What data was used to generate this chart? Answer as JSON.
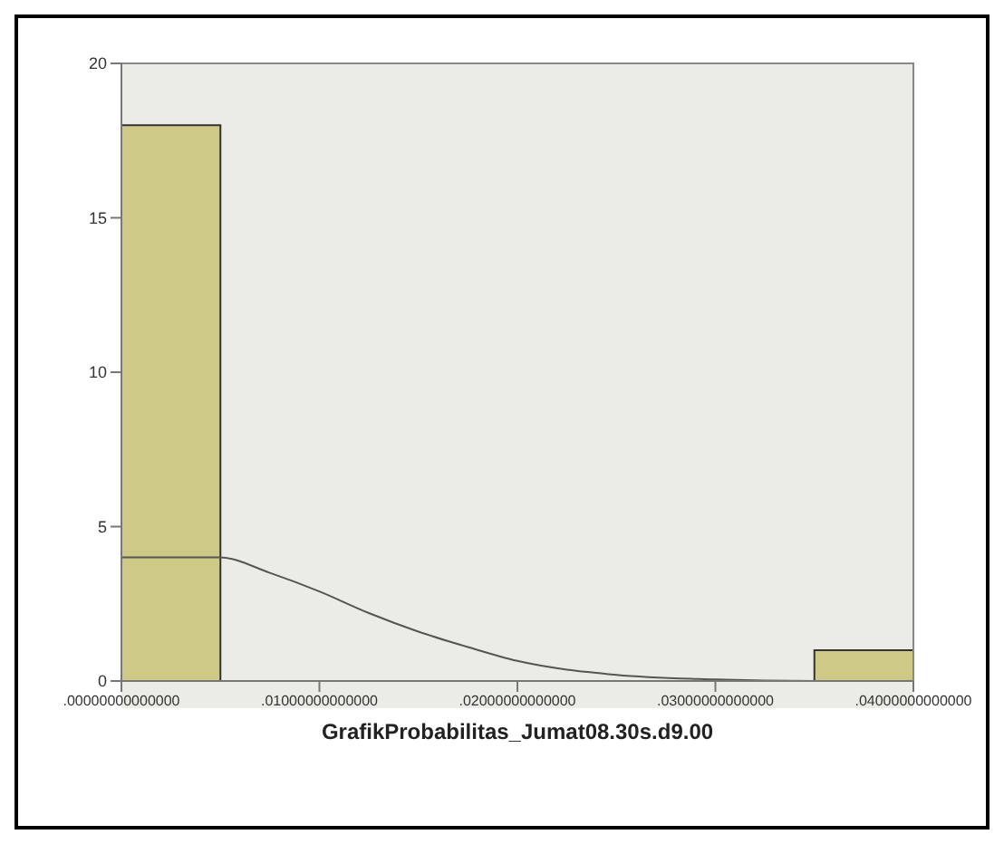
{
  "chart_data": {
    "type": "histogram",
    "xlabel": "GrafikProbabilitas_Jumat08.30s.d9.00",
    "bins": [
      0,
      0.005,
      0.01,
      0.015,
      0.02,
      0.025,
      0.03,
      0.035,
      0.04
    ],
    "values": [
      18,
      0,
      0,
      0,
      0,
      0,
      0,
      1
    ],
    "color": "#cfc987",
    "series": [
      {
        "type": "line",
        "color": "#555555",
        "x": [
          0,
          0.005,
          0.0075,
          0.01,
          0.0125,
          0.015,
          0.0175,
          0.02,
          0.025,
          0.03,
          0.035,
          0.04
        ],
        "values": [
          4.0,
          4.0,
          3.5,
          2.9,
          2.2,
          1.6,
          1.1,
          0.65,
          0.2,
          0.05,
          0,
          0
        ]
      }
    ],
    "xlim": [
      0,
      0.04
    ],
    "xticks": [
      {
        "value": 0,
        "label": ".00000000000000"
      },
      {
        "value": 0.01,
        "label": ".01000000000000"
      },
      {
        "value": 0.02,
        "label": ".02000000000000"
      },
      {
        "value": 0.03,
        "label": ".03000000000000"
      },
      {
        "value": 0.04,
        "label": ".04000000000000"
      }
    ],
    "ylim": [
      0,
      20
    ],
    "yticks": [
      0,
      5,
      10,
      15,
      20
    ]
  }
}
